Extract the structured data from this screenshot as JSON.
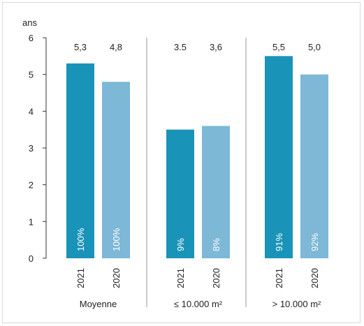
{
  "chart_data": {
    "type": "bar",
    "ylabel": "ans",
    "ylim": [
      0,
      6
    ],
    "yticks": [
      "0",
      "1",
      "2",
      "3",
      "4",
      "5",
      "6"
    ],
    "groups": [
      {
        "label": "Moyenne",
        "bars": [
          {
            "year": "2021",
            "value": 5.3,
            "value_label": "5,3",
            "share": "100%",
            "color": "#1a93b8"
          },
          {
            "year": "2020",
            "value": 4.8,
            "value_label": "4,8",
            "share": "100%",
            "color": "#7db8d6"
          }
        ]
      },
      {
        "label": "≤ 10.000 m²",
        "bars": [
          {
            "year": "2021",
            "value": 3.5,
            "value_label": "3.5",
            "share": "9%",
            "color": "#1a93b8"
          },
          {
            "year": "2020",
            "value": 3.6,
            "value_label": "3,6",
            "share": "8%",
            "color": "#7db8d6"
          }
        ]
      },
      {
        "label": "> 10.000 m²",
        "bars": [
          {
            "year": "2021",
            "value": 5.5,
            "value_label": "5,5",
            "share": "91%",
            "color": "#1a93b8"
          },
          {
            "year": "2020",
            "value": 5.0,
            "value_label": "5,0",
            "share": "92%",
            "color": "#7db8d6"
          }
        ]
      }
    ],
    "grid": false,
    "legend": "none"
  }
}
